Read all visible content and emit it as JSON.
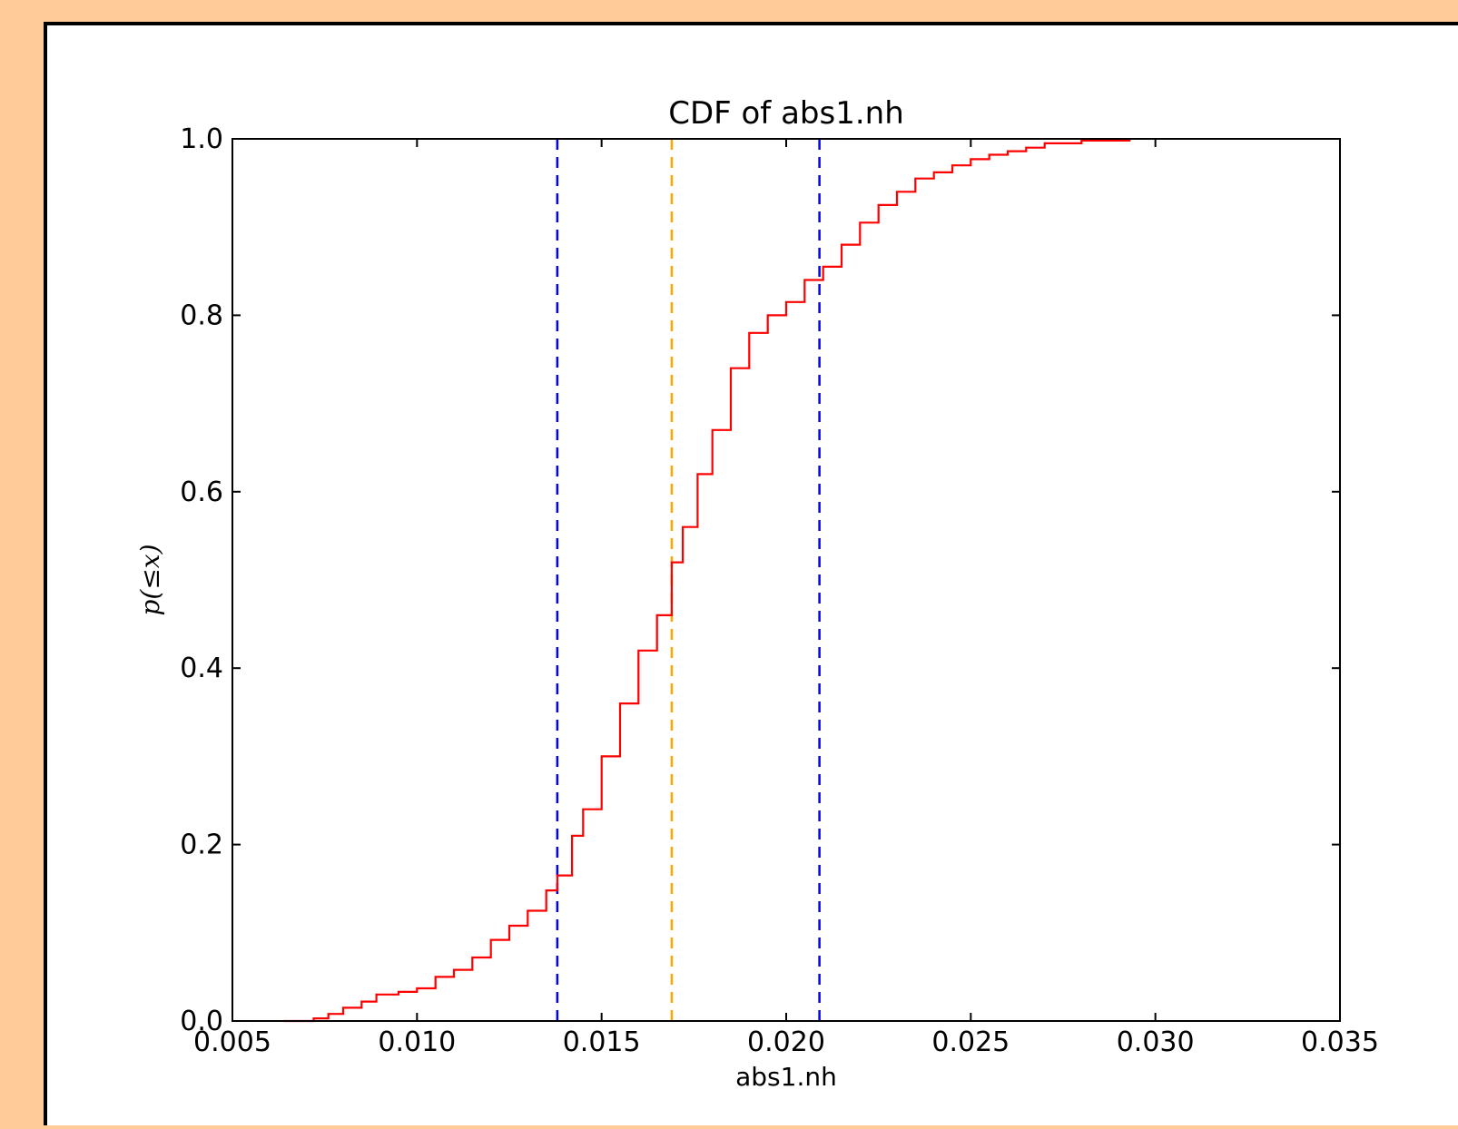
{
  "chart_data": {
    "type": "line",
    "title": "CDF of abs1.nh",
    "xlabel": "abs1.nh",
    "ylabel": "p(≤x)",
    "xlim": [
      0.005,
      0.035
    ],
    "ylim": [
      0.0,
      1.0
    ],
    "x_ticks": [
      0.005,
      0.01,
      0.015,
      0.02,
      0.025,
      0.03,
      0.035
    ],
    "x_tick_labels": [
      "0.005",
      "0.010",
      "0.015",
      "0.020",
      "0.025",
      "0.030",
      "0.035"
    ],
    "y_ticks": [
      0.0,
      0.2,
      0.4,
      0.6,
      0.8,
      1.0
    ],
    "y_tick_labels": [
      "0.0",
      "0.2",
      "0.4",
      "0.6",
      "0.8",
      "1.0"
    ],
    "grid": false,
    "series": [
      {
        "color": "#ff0000",
        "style": "solid-step",
        "x": [
          0.0064,
          0.0072,
          0.0076,
          0.008,
          0.0085,
          0.0089,
          0.0095,
          0.01,
          0.0105,
          0.011,
          0.0115,
          0.012,
          0.0125,
          0.013,
          0.0135,
          0.0138,
          0.0142,
          0.0145,
          0.015,
          0.0155,
          0.016,
          0.0165,
          0.0169,
          0.0172,
          0.0176,
          0.018,
          0.0185,
          0.019,
          0.0195,
          0.02,
          0.0205,
          0.021,
          0.0215,
          0.022,
          0.0225,
          0.023,
          0.0235,
          0.024,
          0.0245,
          0.025,
          0.0255,
          0.026,
          0.0265,
          0.027,
          0.028,
          0.0293
        ],
        "y": [
          0.0,
          0.003,
          0.008,
          0.015,
          0.022,
          0.03,
          0.033,
          0.037,
          0.05,
          0.058,
          0.072,
          0.092,
          0.108,
          0.125,
          0.148,
          0.165,
          0.21,
          0.24,
          0.3,
          0.36,
          0.42,
          0.46,
          0.52,
          0.56,
          0.62,
          0.67,
          0.74,
          0.78,
          0.8,
          0.815,
          0.84,
          0.855,
          0.88,
          0.905,
          0.925,
          0.94,
          0.955,
          0.962,
          0.97,
          0.977,
          0.982,
          0.986,
          0.99,
          0.995,
          0.998,
          1.0
        ]
      }
    ],
    "vlines": [
      {
        "x": 0.0138,
        "color": "#0000ff",
        "style": "dashed"
      },
      {
        "x": 0.0169,
        "color": "#ffa500",
        "style": "dashed"
      },
      {
        "x": 0.0209,
        "color": "#0000ff",
        "style": "dashed"
      }
    ]
  }
}
